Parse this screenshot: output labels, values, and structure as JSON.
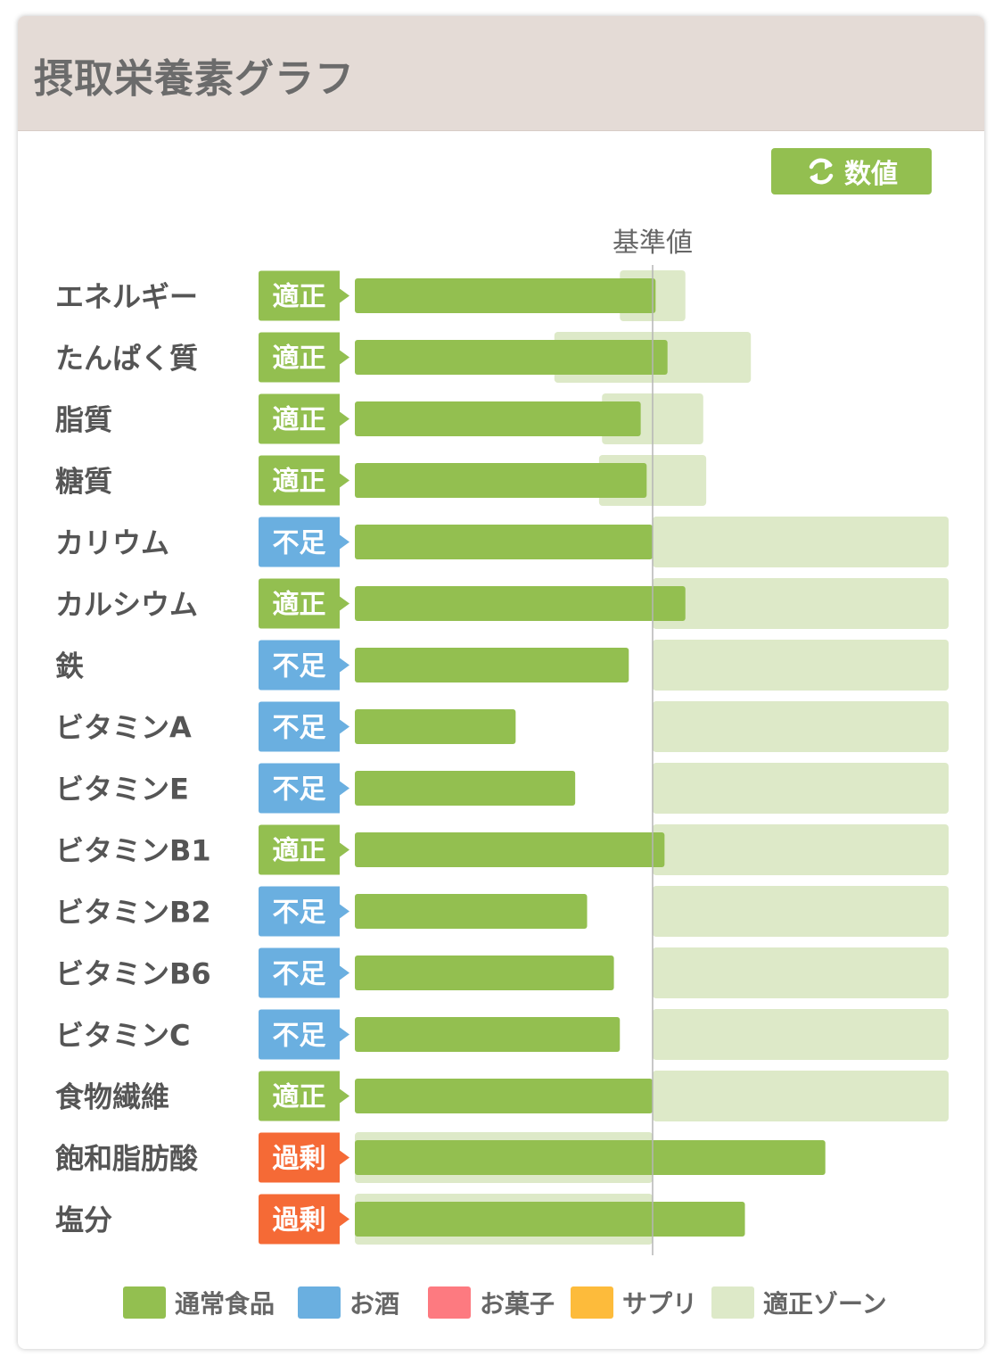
{
  "header": {
    "title": "摂取栄養素グラフ"
  },
  "toolbar": {
    "toggle_label": "数値",
    "toggle_icon": "refresh-icon"
  },
  "colors": {
    "normal_food": "#93bf50",
    "alcohol": "#6aafe0",
    "snack": "#fd7a80",
    "supplement": "#fdbb3b",
    "proper_zone": "#dde9c8",
    "status_ok": "#93bf50",
    "status_low": "#6aafe0",
    "status_high": "#f56a36"
  },
  "chart_data": {
    "type": "bar",
    "orientation": "horizontal",
    "reference_label": "基準値",
    "reference_value": 100,
    "xlim": [
      0,
      200
    ],
    "grid": false,
    "legend_position": "bottom",
    "categories": [
      "エネルギー",
      "たんぱく質",
      "脂質",
      "糖質",
      "カリウム",
      "カルシウム",
      "鉄",
      "ビタミンA",
      "ビタミンE",
      "ビタミンB1",
      "ビタミンB2",
      "ビタミンB6",
      "ビタミンC",
      "食物繊維",
      "飽和脂肪酸",
      "塩分"
    ],
    "statuses": [
      "適正",
      "適正",
      "適正",
      "適正",
      "不足",
      "適正",
      "不足",
      "不足",
      "不足",
      "適正",
      "不足",
      "不足",
      "不足",
      "適正",
      "過剰",
      "過剰"
    ],
    "status_codes": [
      "ok",
      "ok",
      "ok",
      "ok",
      "low",
      "ok",
      "low",
      "low",
      "low",
      "ok",
      "low",
      "low",
      "low",
      "ok",
      "high",
      "high"
    ],
    "series": [
      {
        "name": "通常食品",
        "values": [
          101,
          105,
          96,
          98,
          100,
          111,
          92,
          54,
          74,
          104,
          78,
          87,
          89,
          100,
          158,
          131
        ]
      },
      {
        "name": "お酒",
        "values": [
          0,
          0,
          0,
          0,
          0,
          0,
          0,
          0,
          0,
          0,
          0,
          0,
          0,
          0,
          0,
          0
        ]
      },
      {
        "name": "お菓子",
        "values": [
          0,
          0,
          0,
          0,
          0,
          0,
          0,
          0,
          0,
          0,
          0,
          0,
          0,
          0,
          0,
          0
        ]
      },
      {
        "name": "サプリ",
        "values": [
          0,
          0,
          0,
          0,
          0,
          0,
          0,
          0,
          0,
          0,
          0,
          0,
          0,
          0,
          0,
          0
        ]
      }
    ],
    "proper_zone_name": "適正ゾーン",
    "proper_zone": [
      [
        89,
        111
      ],
      [
        67,
        133
      ],
      [
        83,
        117
      ],
      [
        82,
        118
      ],
      [
        100,
        200
      ],
      [
        100,
        200
      ],
      [
        100,
        200
      ],
      [
        100,
        200
      ],
      [
        100,
        200
      ],
      [
        100,
        200
      ],
      [
        100,
        200
      ],
      [
        100,
        200
      ],
      [
        100,
        200
      ],
      [
        100,
        200
      ],
      [
        0,
        100
      ],
      [
        0,
        100
      ]
    ],
    "legend": [
      "通常食品",
      "お酒",
      "お菓子",
      "サプリ",
      "適正ゾーン"
    ]
  }
}
